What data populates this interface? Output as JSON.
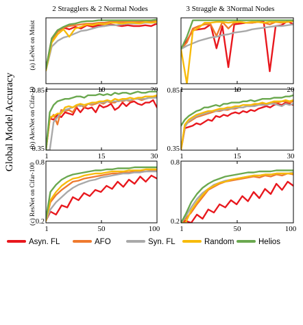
{
  "figure": {
    "ylabel": "Global Model Accuracy",
    "columns": [
      "2 Stragglers & 2 Normal Nodes",
      "3 Straggle & 3Normal Nodes"
    ],
    "rows": [
      "(a) LeNet on Mnist",
      "(b) AlexNet on Cifar-10",
      "(c) ResNet on Cifar-100"
    ]
  },
  "legend": {
    "placement": "bottom",
    "items": [
      {
        "name": "Asyn. FL",
        "color": "#e8171d"
      },
      {
        "name": "AFO",
        "color": "#ef7a2e"
      },
      {
        "name": "Syn. FL",
        "color": "#a9a9a9"
      },
      {
        "name": "Random",
        "color": "#f7bb0b"
      },
      {
        "name": "Helios",
        "color": "#6aa84f"
      }
    ]
  },
  "chart_data": [
    {
      "type": "line",
      "row": 0,
      "col": 0,
      "xlim": [
        1,
        20
      ],
      "ylim": [
        0.2,
        1.0
      ],
      "xticks": [
        "1",
        "10",
        "20"
      ],
      "yticks": [],
      "x": [
        1,
        2,
        3,
        4,
        5,
        6,
        7,
        8,
        9,
        10,
        11,
        12,
        13,
        14,
        15,
        16,
        17,
        18,
        19,
        20
      ],
      "series": [
        {
          "name": "Asyn. FL",
          "values": [
            0.38,
            0.75,
            0.85,
            0.88,
            0.86,
            0.89,
            0.87,
            0.91,
            0.89,
            0.91,
            0.9,
            0.92,
            0.91,
            0.9,
            0.91,
            0.9,
            0.9,
            0.91,
            0.9,
            0.93
          ]
        },
        {
          "name": "AFO",
          "values": [
            0.38,
            0.73,
            0.83,
            0.88,
            0.9,
            0.91,
            0.92,
            0.93,
            0.93,
            0.94,
            0.94,
            0.95,
            0.95,
            0.95,
            0.95,
            0.95,
            0.95,
            0.96,
            0.96,
            0.96
          ]
        },
        {
          "name": "Syn. FL",
          "values": [
            0.36,
            0.65,
            0.72,
            0.76,
            0.78,
            0.81,
            0.84,
            0.85,
            0.87,
            0.89,
            0.9,
            0.91,
            0.91,
            0.92,
            0.93,
            0.93,
            0.93,
            0.94,
            0.94,
            0.94
          ]
        },
        {
          "name": "Random",
          "values": [
            0.36,
            0.7,
            0.8,
            0.86,
            0.77,
            0.87,
            0.89,
            0.92,
            0.91,
            0.93,
            0.92,
            0.94,
            0.94,
            0.93,
            0.94,
            0.94,
            0.93,
            0.95,
            0.94,
            0.95
          ]
        },
        {
          "name": "Helios",
          "values": [
            0.38,
            0.75,
            0.85,
            0.89,
            0.92,
            0.93,
            0.95,
            0.96,
            0.96,
            0.97,
            0.97,
            0.97,
            0.97,
            0.97,
            0.97,
            0.97,
            0.97,
            0.97,
            0.97,
            0.98
          ]
        }
      ]
    },
    {
      "type": "line",
      "row": 0,
      "col": 1,
      "xlim": [
        1,
        20
      ],
      "ylim": [
        0.2,
        1.0
      ],
      "xticks": [
        "1",
        "10",
        "20"
      ],
      "yticks": [],
      "x": [
        1,
        2,
        3,
        4,
        5,
        6,
        7,
        8,
        9,
        10,
        11,
        12,
        13,
        14,
        15,
        16,
        17,
        18,
        19,
        20
      ],
      "series": [
        {
          "name": "Asyn. FL",
          "values": [
            0.62,
            0.72,
            0.85,
            0.86,
            0.87,
            0.92,
            0.63,
            0.9,
            0.4,
            0.92,
            0.93,
            0.94,
            0.94,
            0.95,
            0.95,
            0.35,
            0.9,
            0.91,
            0.96,
            0.92
          ]
        },
        {
          "name": "AFO",
          "values": [
            0.62,
            0.7,
            0.87,
            0.9,
            0.92,
            0.92,
            0.78,
            0.95,
            0.87,
            0.94,
            0.95,
            0.94,
            0.94,
            0.95,
            0.94,
            0.92,
            0.95,
            0.94,
            0.95,
            0.96
          ]
        },
        {
          "name": "Syn. FL",
          "values": [
            0.62,
            0.66,
            0.69,
            0.72,
            0.74,
            0.76,
            0.77,
            0.79,
            0.8,
            0.82,
            0.83,
            0.84,
            0.86,
            0.87,
            0.88,
            0.89,
            0.9,
            0.9,
            0.91,
            0.92
          ]
        },
        {
          "name": "Random",
          "values": [
            0.62,
            0.2,
            0.84,
            0.88,
            0.94,
            0.94,
            0.95,
            0.95,
            0.94,
            0.95,
            0.95,
            0.94,
            0.95,
            0.95,
            0.94,
            0.95,
            0.95,
            0.95,
            0.95,
            0.96
          ]
        },
        {
          "name": "Helios",
          "values": [
            0.62,
            0.77,
            0.97,
            0.97,
            0.97,
            0.97,
            0.97,
            0.97,
            0.97,
            0.97,
            0.97,
            0.97,
            0.97,
            0.97,
            0.97,
            0.97,
            0.97,
            0.97,
            0.97,
            0.97
          ]
        }
      ]
    },
    {
      "type": "line",
      "row": 1,
      "col": 0,
      "xlim": [
        1,
        30
      ],
      "ylim": [
        0.35,
        0.85
      ],
      "xticks": [
        "1",
        "15",
        "30"
      ],
      "yticks": [
        "0.35",
        "0.85"
      ],
      "x": [
        1,
        2,
        3,
        4,
        5,
        6,
        7,
        8,
        9,
        10,
        11,
        12,
        13,
        14,
        15,
        16,
        17,
        18,
        19,
        20,
        21,
        22,
        23,
        24,
        25,
        26,
        27,
        28,
        29,
        30
      ],
      "series": [
        {
          "name": "Asyn. FL",
          "values": [
            0.35,
            0.61,
            0.6,
            0.64,
            0.62,
            0.66,
            0.65,
            0.64,
            0.7,
            0.66,
            0.7,
            0.69,
            0.7,
            0.66,
            0.72,
            0.7,
            0.71,
            0.73,
            0.68,
            0.7,
            0.74,
            0.71,
            0.74,
            0.75,
            0.73,
            0.72,
            0.74,
            0.74,
            0.76,
            0.7
          ]
        },
        {
          "name": "AFO",
          "values": [
            0.35,
            0.6,
            0.64,
            0.56,
            0.68,
            0.67,
            0.68,
            0.66,
            0.71,
            0.72,
            0.7,
            0.73,
            0.72,
            0.73,
            0.74,
            0.73,
            0.75,
            0.74,
            0.74,
            0.76,
            0.75,
            0.76,
            0.75,
            0.77,
            0.77,
            0.76,
            0.77,
            0.78,
            0.78,
            0.79
          ]
        },
        {
          "name": "Syn. FL",
          "values": [
            0.35,
            0.3,
            0.58,
            0.62,
            0.66,
            0.68,
            0.69,
            0.7,
            0.72,
            0.71,
            0.72,
            0.73,
            0.73,
            0.74,
            0.74,
            0.74,
            0.75,
            0.75,
            0.75,
            0.75,
            0.76,
            0.76,
            0.76,
            0.77,
            0.77,
            0.77,
            0.77,
            0.78,
            0.78,
            0.78
          ]
        },
        {
          "name": "Random",
          "values": [
            0.35,
            0.62,
            0.63,
            0.65,
            0.65,
            0.7,
            0.71,
            0.7,
            0.72,
            0.73,
            0.72,
            0.73,
            0.74,
            0.74,
            0.75,
            0.75,
            0.76,
            0.75,
            0.77,
            0.76,
            0.77,
            0.77,
            0.78,
            0.77,
            0.78,
            0.78,
            0.79,
            0.79,
            0.79,
            0.8
          ]
        },
        {
          "name": "Helios",
          "values": [
            0.35,
            0.66,
            0.72,
            0.75,
            0.76,
            0.77,
            0.77,
            0.78,
            0.79,
            0.79,
            0.78,
            0.8,
            0.8,
            0.8,
            0.81,
            0.8,
            0.81,
            0.8,
            0.82,
            0.81,
            0.82,
            0.82,
            0.81,
            0.82,
            0.83,
            0.82,
            0.82,
            0.83,
            0.83,
            0.83
          ]
        }
      ]
    },
    {
      "type": "line",
      "row": 1,
      "col": 1,
      "xlim": [
        1,
        30
      ],
      "ylim": [
        0.35,
        0.85
      ],
      "xticks": [
        "1",
        "15",
        "30"
      ],
      "yticks": [
        "0.35",
        "0.85"
      ],
      "x": [
        1,
        2,
        3,
        4,
        5,
        6,
        7,
        8,
        9,
        10,
        11,
        12,
        13,
        14,
        15,
        16,
        17,
        18,
        19,
        20,
        21,
        22,
        23,
        24,
        25,
        26,
        27,
        28,
        29,
        30
      ],
      "series": [
        {
          "name": "Asyn. FL",
          "values": [
            0.33,
            0.53,
            0.54,
            0.55,
            0.57,
            0.56,
            0.58,
            0.6,
            0.59,
            0.63,
            0.62,
            0.64,
            0.63,
            0.65,
            0.66,
            0.65,
            0.67,
            0.66,
            0.68,
            0.67,
            0.69,
            0.7,
            0.71,
            0.7,
            0.72,
            0.73,
            0.72,
            0.74,
            0.73,
            0.72
          ]
        },
        {
          "name": "AFO",
          "values": [
            0.33,
            0.56,
            0.58,
            0.6,
            0.62,
            0.63,
            0.64,
            0.65,
            0.66,
            0.67,
            0.67,
            0.68,
            0.68,
            0.69,
            0.69,
            0.7,
            0.7,
            0.71,
            0.71,
            0.72,
            0.72,
            0.73,
            0.73,
            0.74,
            0.74,
            0.74,
            0.75,
            0.75,
            0.74,
            0.75
          ]
        },
        {
          "name": "Syn. FL",
          "values": [
            0.33,
            0.54,
            0.59,
            0.61,
            0.63,
            0.64,
            0.65,
            0.66,
            0.67,
            0.67,
            0.68,
            0.68,
            0.69,
            0.69,
            0.7,
            0.7,
            0.7,
            0.71,
            0.71,
            0.71,
            0.72,
            0.72,
            0.72,
            0.73,
            0.73,
            0.72,
            0.71,
            0.73,
            0.72,
            0.73
          ]
        },
        {
          "name": "Random",
          "values": [
            0.33,
            0.56,
            0.6,
            0.62,
            0.64,
            0.65,
            0.66,
            0.67,
            0.67,
            0.68,
            0.69,
            0.69,
            0.7,
            0.7,
            0.71,
            0.71,
            0.72,
            0.72,
            0.72,
            0.73,
            0.73,
            0.74,
            0.73,
            0.74,
            0.75,
            0.75,
            0.75,
            0.76,
            0.75,
            0.76
          ]
        },
        {
          "name": "Helios",
          "values": [
            0.55,
            0.6,
            0.63,
            0.65,
            0.67,
            0.68,
            0.7,
            0.7,
            0.71,
            0.72,
            0.71,
            0.73,
            0.73,
            0.74,
            0.74,
            0.74,
            0.75,
            0.75,
            0.76,
            0.75,
            0.76,
            0.77,
            0.77,
            0.77,
            0.78,
            0.78,
            0.78,
            0.79,
            0.79,
            0.8
          ]
        }
      ]
    },
    {
      "type": "line",
      "row": 2,
      "col": 0,
      "xlim": [
        1,
        100
      ],
      "ylim": [
        0.2,
        0.8
      ],
      "xticks": [
        "1",
        "50",
        "100"
      ],
      "yticks": [
        "0.2",
        "0.8"
      ],
      "x": [
        1,
        5,
        10,
        15,
        20,
        25,
        30,
        35,
        40,
        45,
        50,
        55,
        60,
        65,
        70,
        75,
        80,
        85,
        90,
        95,
        100
      ],
      "series": [
        {
          "name": "Asyn. FL",
          "values": [
            0.22,
            0.31,
            0.28,
            0.37,
            0.35,
            0.45,
            0.42,
            0.49,
            0.46,
            0.52,
            0.5,
            0.56,
            0.53,
            0.6,
            0.55,
            0.62,
            0.58,
            0.65,
            0.6,
            0.66,
            0.63
          ]
        },
        {
          "name": "AFO",
          "values": [
            0.22,
            0.4,
            0.47,
            0.52,
            0.56,
            0.6,
            0.61,
            0.63,
            0.64,
            0.65,
            0.66,
            0.67,
            0.68,
            0.68,
            0.69,
            0.69,
            0.7,
            0.7,
            0.7,
            0.71,
            0.71
          ]
        },
        {
          "name": "Syn. FL",
          "values": [
            0.22,
            0.33,
            0.4,
            0.45,
            0.5,
            0.54,
            0.57,
            0.59,
            0.61,
            0.62,
            0.64,
            0.65,
            0.66,
            0.67,
            0.68,
            0.68,
            0.69,
            0.69,
            0.7,
            0.7,
            0.7
          ]
        },
        {
          "name": "Random",
          "values": [
            0.22,
            0.42,
            0.5,
            0.56,
            0.6,
            0.63,
            0.64,
            0.66,
            0.67,
            0.68,
            0.68,
            0.69,
            0.7,
            0.7,
            0.7,
            0.71,
            0.71,
            0.71,
            0.72,
            0.72,
            0.72
          ]
        },
        {
          "name": "Helios",
          "values": [
            0.24,
            0.5,
            0.57,
            0.62,
            0.65,
            0.67,
            0.68,
            0.69,
            0.7,
            0.71,
            0.71,
            0.72,
            0.72,
            0.73,
            0.73,
            0.73,
            0.74,
            0.74,
            0.74,
            0.74,
            0.74
          ]
        }
      ]
    },
    {
      "type": "line",
      "row": 2,
      "col": 1,
      "xlim": [
        1,
        100
      ],
      "ylim": [
        0.2,
        0.8
      ],
      "xticks": [
        "1",
        "50",
        "100"
      ],
      "yticks": [
        "0.2",
        "0.8"
      ],
      "x": [
        1,
        5,
        10,
        15,
        20,
        25,
        30,
        35,
        40,
        45,
        50,
        55,
        60,
        65,
        70,
        75,
        80,
        85,
        90,
        95,
        100
      ],
      "series": [
        {
          "name": "Asyn. FL",
          "values": [
            0.18,
            0.22,
            0.2,
            0.28,
            0.24,
            0.33,
            0.3,
            0.38,
            0.35,
            0.42,
            0.38,
            0.46,
            0.41,
            0.5,
            0.44,
            0.53,
            0.48,
            0.58,
            0.52,
            0.6,
            0.56
          ]
        },
        {
          "name": "AFO",
          "values": [
            0.18,
            0.24,
            0.3,
            0.38,
            0.45,
            0.52,
            0.55,
            0.58,
            0.6,
            0.61,
            0.62,
            0.63,
            0.64,
            0.65,
            0.64,
            0.66,
            0.65,
            0.67,
            0.66,
            0.68,
            0.67
          ]
        },
        {
          "name": "Syn. FL",
          "values": [
            0.18,
            0.26,
            0.35,
            0.43,
            0.49,
            0.53,
            0.57,
            0.59,
            0.61,
            0.62,
            0.63,
            0.64,
            0.65,
            0.66,
            0.66,
            0.67,
            0.67,
            0.68,
            0.68,
            0.68,
            0.69
          ]
        },
        {
          "name": "Random",
          "values": [
            0.18,
            0.2,
            0.32,
            0.4,
            0.47,
            0.53,
            0.56,
            0.59,
            0.6,
            0.62,
            0.63,
            0.64,
            0.65,
            0.66,
            0.66,
            0.67,
            0.67,
            0.68,
            0.68,
            0.68,
            0.68
          ]
        },
        {
          "name": "Helios",
          "values": [
            0.2,
            0.28,
            0.4,
            0.48,
            0.54,
            0.58,
            0.61,
            0.63,
            0.65,
            0.66,
            0.67,
            0.68,
            0.69,
            0.69,
            0.7,
            0.7,
            0.7,
            0.71,
            0.71,
            0.71,
            0.71
          ]
        }
      ]
    }
  ]
}
